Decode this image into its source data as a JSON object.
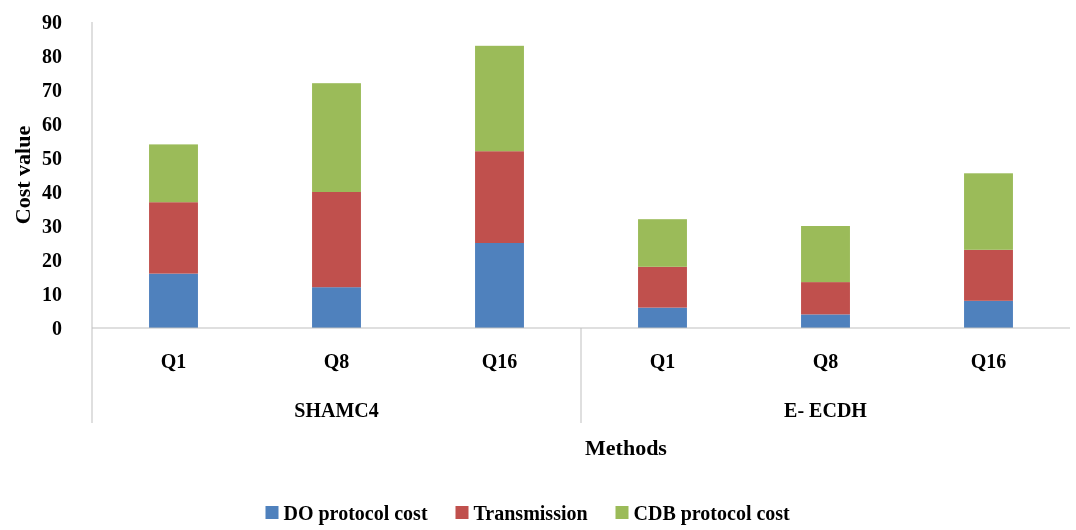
{
  "chart_data": {
    "type": "bar",
    "stacked": true,
    "xlabel": "Methods",
    "ylabel": "Cost value",
    "categories": [
      "Q1",
      "Q8",
      "Q16",
      "Q1",
      "Q8",
      "Q16"
    ],
    "annotations": [
      "SHAMC4",
      "E- ECDH"
    ],
    "ylim": [
      0,
      90
    ],
    "yticks": [
      0,
      10,
      20,
      30,
      40,
      50,
      60,
      70,
      80,
      90
    ],
    "grid": false,
    "legend": "bottom",
    "series": [
      {
        "name": "DO protocol cost",
        "color": "#4f81bd",
        "values": [
          16,
          12,
          25,
          6,
          4,
          8
        ]
      },
      {
        "name": "Transmission",
        "color": "#c0504d",
        "values": [
          21,
          28,
          27,
          12,
          9.5,
          15
        ]
      },
      {
        "name": "CDB protocol cost",
        "color": "#9bbb59",
        "values": [
          17,
          32,
          31,
          14,
          16.5,
          22.5
        ]
      }
    ]
  }
}
